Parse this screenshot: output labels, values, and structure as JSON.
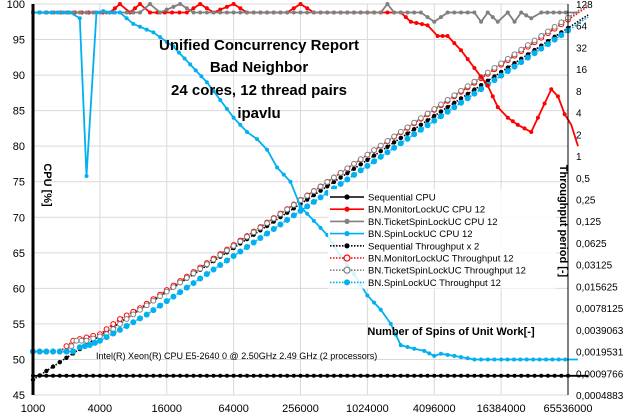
{
  "chart_data": {
    "type": "line",
    "title_lines": [
      "Unified Concurrency Report",
      "Bad Neighbor",
      "24 cores, 12 thread pairs",
      "ipavlu"
    ],
    "y_left_label": "CPU [%]",
    "y_right_label": "Throughput period [-]",
    "x_label": "Number of Spins of Unit Work[-]",
    "annotation": "Intel(R) Xeon(R) CPU E5-2640 0 @ 2.50GHz   2.49 GHz  (2 processors)",
    "x_ticks": [
      "1000",
      "4000",
      "16000",
      "64000",
      "256000",
      "1024000",
      "4096000",
      "16384000",
      "65536000"
    ],
    "y_left_ticks": [
      100,
      95,
      90,
      85,
      80,
      75,
      70,
      65,
      60,
      55,
      50,
      45
    ],
    "y_right_ticks": [
      "128",
      "64",
      "32",
      "16",
      "8",
      "4",
      "2",
      "1",
      "0,5",
      "0,25",
      "0,125",
      "0,0625",
      "0,03125",
      "0,015625",
      "0,0078125",
      "0,0039063",
      "0,0019531",
      "0,0009766",
      "0,0004883"
    ],
    "x_range_log4": [
      0,
      8
    ],
    "y_left_range": [
      45,
      100
    ],
    "y_right_range_log2": [
      -11,
      7
    ],
    "legend": {
      "position": "right-middle",
      "entries": [
        {
          "label": "Sequential CPU",
          "color": "#000000",
          "style": "line",
          "marker": "filled"
        },
        {
          "label": "BN.MonitorLockUC CPU 12",
          "color": "#ff0000",
          "style": "line",
          "marker": "filled"
        },
        {
          "label": "BN.TicketSpinLockUC CPU 12",
          "color": "#808080",
          "style": "line",
          "marker": "filled"
        },
        {
          "label": "BN.SpinLockUC CPU 12",
          "color": "#00b0f0",
          "style": "line",
          "marker": "filled"
        },
        {
          "label": "Sequential Throughput x 2",
          "color": "#000000",
          "style": "dotted",
          "marker": "filled"
        },
        {
          "label": "BN.MonitorLockUC Throughput 12",
          "color": "#ff0000",
          "style": "dotted",
          "marker": "hollow"
        },
        {
          "label": "BN.TicketSpinLockUC Throughput 12",
          "color": "#808080",
          "style": "dotted",
          "marker": "hollow"
        },
        {
          "label": "BN.SpinLockUC Throughput 12",
          "color": "#00b0f0",
          "style": "dotted",
          "marker": "dotfill"
        }
      ]
    },
    "cpu_series": [
      {
        "name": "Sequential CPU",
        "color": "#000000",
        "points": [
          [
            0,
            47.7
          ],
          [
            8.3,
            47.7
          ]
        ]
      },
      {
        "name": "BN.MonitorLockUC CPU 12",
        "color": "#ff0000",
        "points": [
          [
            0,
            98.8
          ],
          [
            1.15,
            98.8
          ],
          [
            1.3,
            100
          ],
          [
            1.45,
            98.8
          ],
          [
            1.6,
            100
          ],
          [
            1.75,
            98.8
          ],
          [
            2.3,
            98.8
          ],
          [
            2.5,
            100
          ],
          [
            2.7,
            98.8
          ],
          [
            3,
            100
          ],
          [
            3.2,
            98.8
          ],
          [
            3.8,
            98.8
          ],
          [
            4,
            100
          ],
          [
            4.2,
            98.8
          ],
          [
            5.5,
            98.8
          ],
          [
            5.65,
            97.5
          ],
          [
            5.9,
            97
          ],
          [
            6.05,
            95.5
          ],
          [
            6.2,
            95.5
          ],
          [
            6.4,
            93.5
          ],
          [
            6.6,
            91
          ],
          [
            6.8,
            88.5
          ],
          [
            6.95,
            85.5
          ],
          [
            7.1,
            84
          ],
          [
            7.25,
            83
          ],
          [
            7.35,
            82.5
          ],
          [
            7.45,
            82
          ],
          [
            7.55,
            84
          ],
          [
            7.65,
            86
          ],
          [
            7.75,
            88
          ],
          [
            7.85,
            87
          ],
          [
            7.95,
            84.5
          ],
          [
            8.05,
            83
          ],
          [
            8.15,
            80
          ]
        ]
      },
      {
        "name": "BN.TicketSpinLockUC CPU 12",
        "color": "#808080",
        "points": [
          [
            0,
            98.8
          ],
          [
            1.6,
            98.8
          ],
          [
            1.75,
            100
          ],
          [
            1.9,
            98.8
          ],
          [
            2.2,
            100
          ],
          [
            2.4,
            98.8
          ],
          [
            5.2,
            98.8
          ],
          [
            5.3,
            100
          ],
          [
            5.4,
            98.8
          ],
          [
            5.8,
            98.8
          ],
          [
            6,
            97.5
          ],
          [
            6.2,
            98.8
          ],
          [
            6.6,
            98.8
          ],
          [
            6.7,
            97.5
          ],
          [
            6.8,
            98.8
          ],
          [
            6.95,
            97.5
          ],
          [
            7.1,
            98.8
          ],
          [
            7.2,
            97.5
          ],
          [
            7.3,
            98.8
          ],
          [
            7.45,
            98
          ],
          [
            7.6,
            98.8
          ],
          [
            8.15,
            98.8
          ]
        ]
      },
      {
        "name": "BN.SpinLockUC CPU 12",
        "color": "#00b0f0",
        "points": [
          [
            0,
            98.8
          ],
          [
            0.55,
            98.8
          ],
          [
            0.7,
            98
          ],
          [
            0.8,
            75.8
          ],
          [
            0.95,
            98.8
          ],
          [
            1.05,
            99
          ],
          [
            1.15,
            98.8
          ],
          [
            1.3,
            98.8
          ],
          [
            1.5,
            97.2
          ],
          [
            1.8,
            96
          ],
          [
            2.1,
            94
          ],
          [
            2.35,
            91.5
          ],
          [
            2.6,
            89
          ],
          [
            2.8,
            86.5
          ],
          [
            3,
            84
          ],
          [
            3.2,
            82
          ],
          [
            3.35,
            81
          ],
          [
            3.5,
            79.5
          ],
          [
            3.65,
            77
          ],
          [
            3.85,
            75
          ],
          [
            4,
            71.5
          ],
          [
            4.2,
            69.5
          ],
          [
            4.4,
            67.5
          ],
          [
            4.6,
            64.5
          ],
          [
            4.8,
            62
          ],
          [
            5,
            59
          ],
          [
            5.2,
            57
          ],
          [
            5.35,
            55
          ],
          [
            5.5,
            52
          ],
          [
            5.7,
            51.5
          ],
          [
            5.85,
            51.2
          ],
          [
            6,
            50.5
          ],
          [
            6.1,
            50.8
          ],
          [
            6.3,
            50.5
          ],
          [
            6.6,
            50
          ],
          [
            7,
            50
          ],
          [
            8.15,
            50
          ]
        ]
      }
    ],
    "throughput_series": [
      {
        "name": "Sequential Throughput x 2",
        "color": "#000000",
        "points": [
          [
            0,
            -10.3
          ],
          [
            8.3,
            6.5
          ]
        ]
      },
      {
        "name": "BN.MonitorLockUC Throughput 12",
        "color": "#ff0000",
        "points": [
          [
            0,
            -9
          ],
          [
            0.4,
            -9
          ],
          [
            0.6,
            -8.5
          ],
          [
            1.0,
            -8.2
          ],
          [
            1.3,
            -7.5
          ],
          [
            1.6,
            -7
          ],
          [
            8.3,
            6.9
          ]
        ]
      },
      {
        "name": "BN.TicketSpinLockUC Throughput 12",
        "color": "#808080",
        "points": [
          [
            0,
            -9
          ],
          [
            0.5,
            -9
          ],
          [
            0.65,
            -8.5
          ],
          [
            0.8,
            -8.5
          ],
          [
            1.1,
            -8.2
          ],
          [
            1.4,
            -7.5
          ],
          [
            8.3,
            7
          ]
        ]
      },
      {
        "name": "BN.SpinLockUC Throughput 12",
        "color": "#00b0f0",
        "points": [
          [
            0,
            -9
          ],
          [
            0.5,
            -9
          ],
          [
            0.6,
            -9
          ],
          [
            0.7,
            -8.8
          ],
          [
            0.85,
            -8.7
          ],
          [
            1.0,
            -8.5
          ],
          [
            1.3,
            -8
          ],
          [
            1.7,
            -7.3
          ],
          [
            8.3,
            6.4
          ]
        ]
      }
    ]
  }
}
